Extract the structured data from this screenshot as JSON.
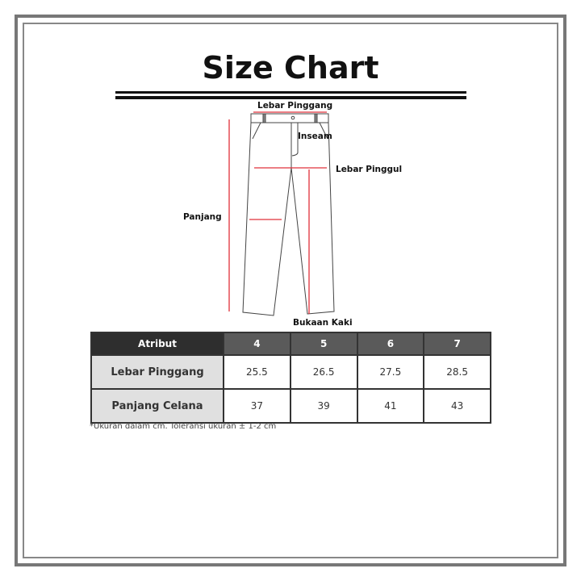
{
  "title": "Size Chart",
  "diagram": {
    "labels": {
      "waist": "Lebar Pinggang",
      "inseam": "Inseam",
      "hip": "Lebar Pinggul",
      "length": "Panjang",
      "leg_opening": "Bukaan Kaki"
    },
    "measure_line_color": "#e0303a"
  },
  "table": {
    "header": [
      "Atribut",
      "4",
      "5",
      "6",
      "7"
    ],
    "rows": [
      {
        "label": "Lebar Pinggang",
        "values": [
          "25.5",
          "26.5",
          "27.5",
          "28.5"
        ]
      },
      {
        "label": "Panjang Celana",
        "values": [
          "37",
          "39",
          "41",
          "43"
        ]
      }
    ]
  },
  "note": "*Ukuran dalam cm. Toleransi ukuran ± 1-2 cm"
}
